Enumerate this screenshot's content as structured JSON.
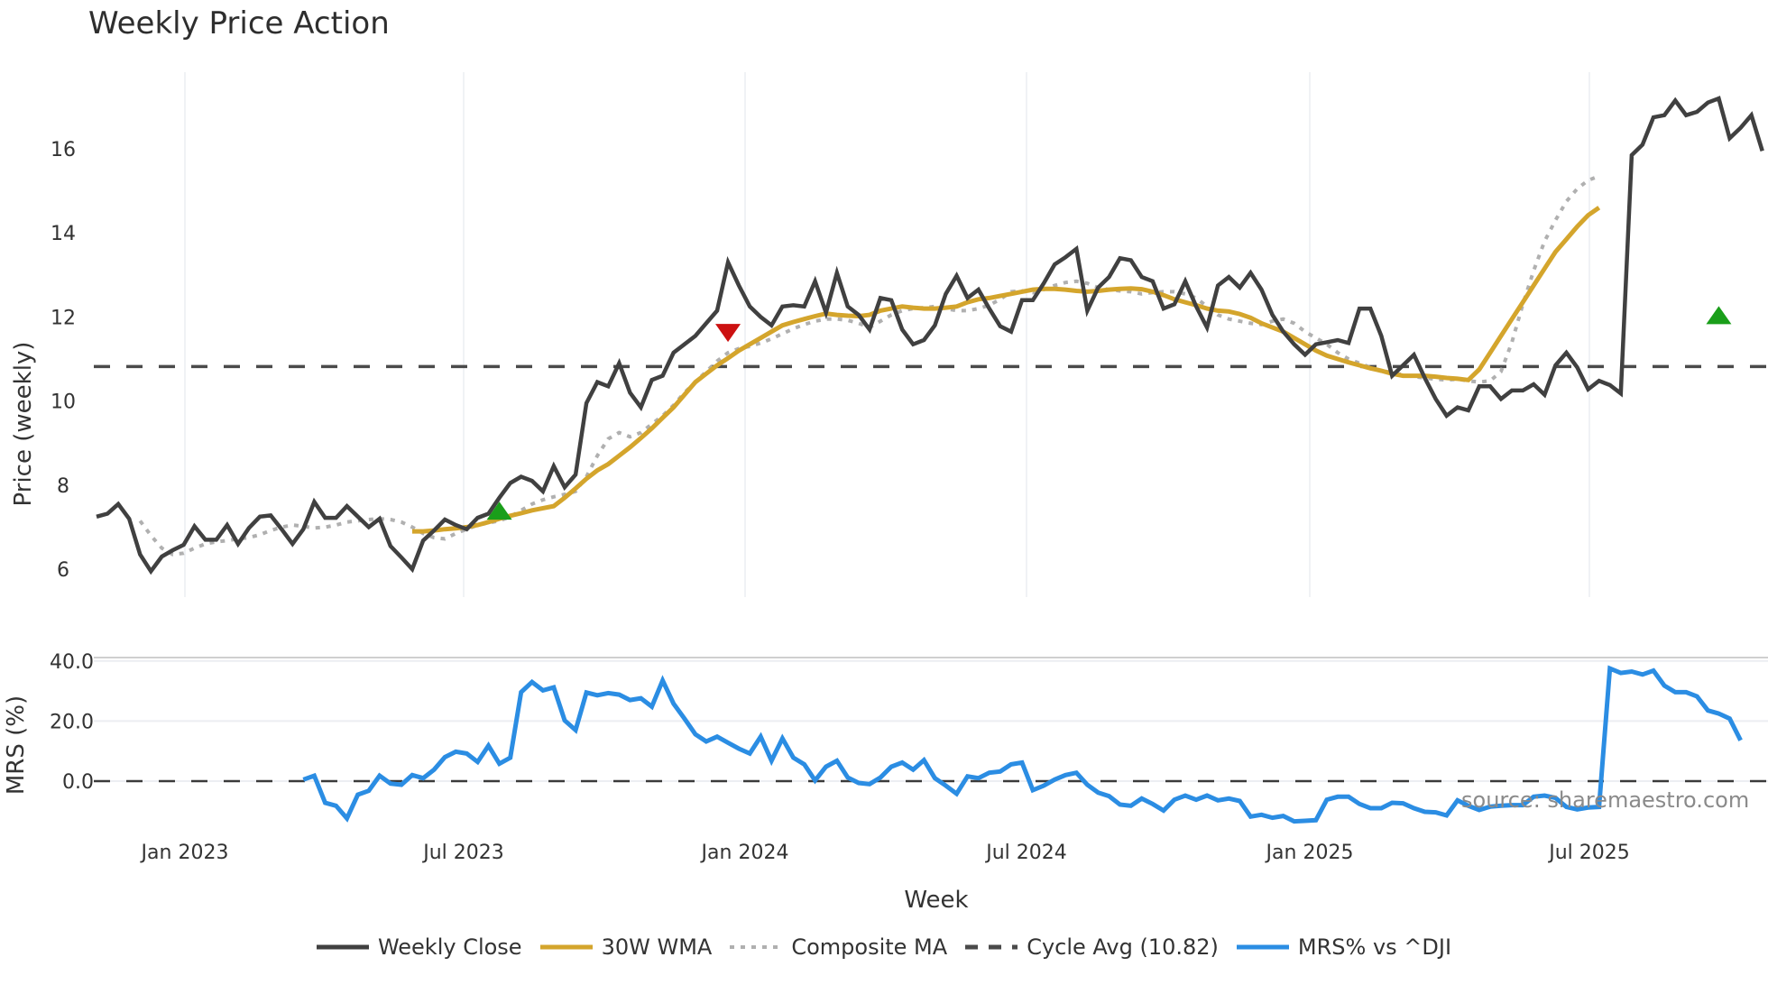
{
  "title": "Weekly Price Action",
  "source": "source: sharemaestro.com",
  "colors": {
    "weekly_close": "#404040",
    "wma": "#d4a52c",
    "composite": "#b0b0b0",
    "cycle_avg": "#4a4a4a",
    "mrs": "#2b8de3",
    "buy_signal": "#1a9e1a",
    "sell_signal": "#cc1111",
    "grid": "#eceef2"
  },
  "legend": [
    {
      "key": "weekly_close",
      "label": "Weekly Close",
      "style": "solid"
    },
    {
      "key": "wma",
      "label": "30W WMA",
      "style": "solid"
    },
    {
      "key": "composite",
      "label": "Composite MA",
      "style": "dot"
    },
    {
      "key": "cycle_avg",
      "label": "Cycle Avg (10.82)",
      "style": "dash"
    },
    {
      "key": "mrs",
      "label": "MRS% vs ^DJI",
      "style": "solid"
    }
  ],
  "chart_data": [
    {
      "type": "line",
      "title": "Weekly Price Action",
      "xlabel": "Week",
      "ylabel": "Price (weekly)",
      "ylim": [
        5.4,
        17.8
      ],
      "yticks": [
        6,
        8,
        10,
        12,
        14,
        16
      ],
      "xticks": [
        "Jan 2023",
        "Jul 2023",
        "Jan 2024",
        "Jul 2024",
        "Jan 2025",
        "Jul 2025"
      ],
      "grid": true,
      "legend_position": "bottom",
      "x_start": "2022-11-07",
      "x_step_days": 7,
      "cycle_avg": 10.82,
      "series": [
        {
          "name": "Weekly Close",
          "values": [
            7.25,
            7.32,
            7.55,
            7.2,
            6.35,
            5.95,
            6.3,
            6.45,
            6.58,
            7.02,
            6.7,
            6.7,
            7.05,
            6.6,
            6.98,
            7.25,
            7.28,
            6.95,
            6.6,
            6.95,
            7.6,
            7.22,
            7.22,
            7.5,
            7.25,
            7.0,
            7.2,
            6.55,
            6.28,
            6.0,
            6.68,
            6.92,
            7.18,
            7.05,
            6.95,
            7.22,
            7.32,
            7.7,
            8.05,
            8.2,
            8.1,
            7.85,
            8.45,
            7.95,
            8.25,
            9.95,
            10.45,
            10.35,
            10.9,
            10.2,
            9.85,
            10.5,
            10.6,
            11.15,
            11.35,
            11.55,
            11.85,
            12.15,
            13.3,
            12.75,
            12.25,
            12.0,
            11.8,
            12.25,
            12.28,
            12.25,
            12.85,
            12.1,
            13.05,
            12.25,
            12.05,
            11.7,
            12.45,
            12.4,
            11.7,
            11.35,
            11.45,
            11.8,
            12.55,
            12.98,
            12.45,
            12.65,
            12.2,
            11.78,
            11.65,
            12.4,
            12.4,
            12.8,
            13.25,
            13.42,
            13.62,
            12.15,
            12.7,
            12.95,
            13.4,
            13.35,
            12.95,
            12.85,
            12.2,
            12.3,
            12.85,
            12.25,
            11.75,
            12.75,
            12.95,
            12.7,
            13.05,
            12.65,
            12.05,
            11.65,
            11.35,
            11.1,
            11.35,
            11.4,
            11.45,
            11.38,
            12.2,
            12.2,
            11.55,
            10.6,
            10.85,
            11.1,
            10.55,
            10.05,
            9.65,
            9.85,
            9.78,
            10.35,
            10.35,
            10.05,
            10.25,
            10.25,
            10.4,
            10.15,
            10.85,
            11.15,
            10.8,
            10.28,
            10.48,
            10.38,
            10.18,
            15.85,
            16.1,
            16.75,
            16.8,
            17.15,
            16.8,
            16.88,
            17.1,
            17.2,
            16.25,
            16.5,
            16.8,
            15.95
          ],
          "start_index": 0
        },
        {
          "name": "30W WMA",
          "start_index": 29,
          "values": [
            6.9,
            6.9,
            6.92,
            6.95,
            6.97,
            7.0,
            7.05,
            7.12,
            7.2,
            7.27,
            7.33,
            7.4,
            7.45,
            7.5,
            7.7,
            7.92,
            8.15,
            8.35,
            8.5,
            8.7,
            8.9,
            9.12,
            9.35,
            9.6,
            9.85,
            10.15,
            10.45,
            10.65,
            10.85,
            11.02,
            11.2,
            11.35,
            11.5,
            11.65,
            11.8,
            11.88,
            11.95,
            12.02,
            12.08,
            12.05,
            12.03,
            12.02,
            12.05,
            12.15,
            12.2,
            12.25,
            12.22,
            12.2,
            12.2,
            12.22,
            12.25,
            12.35,
            12.42,
            12.45,
            12.5,
            12.55,
            12.6,
            12.65,
            12.67,
            12.67,
            12.65,
            12.62,
            12.6,
            12.62,
            12.65,
            12.67,
            12.68,
            12.66,
            12.6,
            12.52,
            12.42,
            12.35,
            12.28,
            12.2,
            12.15,
            12.13,
            12.07,
            11.98,
            11.85,
            11.75,
            11.65,
            11.5,
            11.35,
            11.2,
            11.08,
            11.0,
            10.92,
            10.85,
            10.78,
            10.72,
            10.65,
            10.6,
            10.6,
            10.6,
            10.58,
            10.55,
            10.53,
            10.5,
            10.75,
            11.15,
            11.55,
            11.95,
            12.35,
            12.75,
            13.15,
            13.55,
            13.85,
            14.15,
            14.42,
            14.6
          ]
        },
        {
          "name": "Composite MA",
          "start_index": 4,
          "values": [
            7.15,
            6.8,
            6.5,
            6.35,
            6.38,
            6.5,
            6.6,
            6.65,
            6.68,
            6.72,
            6.75,
            6.82,
            6.92,
            7.0,
            7.05,
            7.02,
            6.98,
            7.0,
            7.05,
            7.12,
            7.15,
            7.18,
            7.2,
            7.18,
            7.12,
            7.0,
            6.85,
            6.75,
            6.72,
            6.85,
            6.95,
            7.05,
            7.1,
            7.15,
            7.25,
            7.4,
            7.55,
            7.65,
            7.72,
            7.78,
            7.85,
            8.2,
            8.7,
            9.1,
            9.25,
            9.15,
            9.25,
            9.45,
            9.65,
            9.9,
            10.2,
            10.45,
            10.7,
            10.95,
            11.15,
            11.25,
            11.3,
            11.38,
            11.48,
            11.6,
            11.72,
            11.82,
            11.9,
            11.95,
            11.95,
            11.92,
            11.85,
            11.75,
            11.9,
            12.05,
            12.15,
            12.2,
            12.22,
            12.25,
            12.2,
            12.15,
            12.15,
            12.2,
            12.28,
            12.42,
            12.6,
            12.62,
            12.58,
            12.65,
            12.75,
            12.82,
            12.85,
            12.8,
            12.7,
            12.65,
            12.62,
            12.6,
            12.55,
            12.58,
            12.6,
            12.6,
            12.55,
            12.45,
            12.25,
            12.05,
            11.95,
            11.9,
            11.85,
            11.82,
            11.9,
            11.95,
            11.85,
            11.65,
            11.5,
            11.35,
            11.15,
            11.0,
            10.9,
            10.8,
            10.72,
            10.68,
            10.62,
            10.58,
            10.55,
            10.52,
            10.5,
            10.52,
            10.48,
            10.45,
            10.48,
            10.7,
            11.4,
            12.3,
            13.1,
            13.8,
            14.3,
            14.75,
            15.05,
            15.25,
            15.35
          ]
        }
      ],
      "markers": [
        {
          "type": "buy",
          "index": 37,
          "price": 7.35
        },
        {
          "type": "sell",
          "index": 58,
          "price": 11.62
        },
        {
          "type": "buy",
          "index": 149,
          "price": 12.0
        }
      ]
    },
    {
      "type": "line",
      "title": "",
      "xlabel": "Week",
      "ylabel": "MRS (%)",
      "ylim": [
        -16,
        42
      ],
      "yticks": [
        0.0,
        20.0,
        40.0
      ],
      "ytick_labels": [
        "0.0",
        "20.0",
        "40.0"
      ],
      "series": [
        {
          "name": "MRS% vs ^DJI",
          "start_index": 19,
          "values": [
            0.5,
            1.8,
            -7.2,
            -8.2,
            -12.4,
            -4.5,
            -3.2,
            1.8,
            -0.8,
            -1.2,
            2.0,
            1.0,
            3.8,
            8.0,
            9.8,
            9.2,
            6.4,
            11.8,
            5.8,
            7.8,
            29.6,
            33.0,
            30.2,
            31.2,
            20.2,
            17.0,
            29.5,
            28.6,
            29.3,
            28.8,
            27.0,
            27.6,
            24.8,
            33.5,
            25.8,
            20.8,
            15.6,
            13.2,
            14.8,
            12.8,
            10.8,
            9.2,
            14.8,
            6.8,
            14.2,
            7.8,
            5.6,
            0.2,
            4.8,
            6.8,
            1.2,
            -0.6,
            -1.0,
            1.2,
            4.8,
            6.2,
            3.8,
            7.0,
            1.0,
            -1.5,
            -4.2,
            1.6,
            1.0,
            2.8,
            3.2,
            5.6,
            6.2,
            -3.0,
            -1.5,
            0.5,
            2.0,
            2.8,
            -1.2,
            -3.8,
            -5.0,
            -7.8,
            -8.2,
            -5.8,
            -7.6,
            -9.8,
            -6.2,
            -4.8,
            -6.2,
            -4.8,
            -6.4,
            -5.8,
            -6.6,
            -11.8,
            -11.2,
            -12.2,
            -11.6,
            -13.4,
            -13.2,
            -13.0,
            -6.2,
            -5.2,
            -5.2,
            -7.6,
            -9.0,
            -9.0,
            -7.2,
            -7.4,
            -9.0,
            -10.2,
            -10.4,
            -11.4,
            -6.4,
            -8.2,
            -9.6,
            -8.5,
            -8.2,
            -8.0,
            -8.0,
            -5.2,
            -4.8,
            -5.6,
            -8.6,
            -9.4,
            -8.8,
            -8.6,
            37.5,
            36.0,
            36.5,
            35.5,
            36.8,
            31.8,
            29.6,
            29.6,
            28.2,
            23.5,
            22.5,
            20.8,
            13.6
          ]
        }
      ],
      "reference_line": 0
    }
  ]
}
